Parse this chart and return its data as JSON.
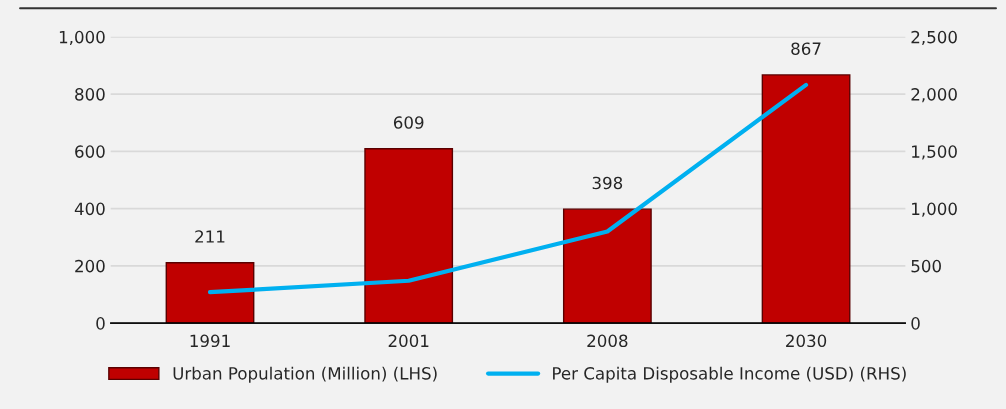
{
  "chart_data": {
    "type": "bar",
    "categories": [
      "1991",
      "2001",
      "2008",
      "2030"
    ],
    "series": [
      {
        "name": "Urban Population (Million) (LHS)",
        "color": "#c00000",
        "values": [
          211,
          609,
          398,
          867
        ],
        "value_labels": [
          "211",
          "609",
          "398",
          "867"
        ]
      },
      {
        "name": "Per Capita Disposable Income (USD) (RHS)",
        "type": "line",
        "axis": "y2",
        "color": "#00b0f0",
        "values": [
          270,
          370,
          800,
          2080
        ]
      }
    ],
    "ylim": [
      0,
      1000
    ],
    "yticks": [
      0,
      200,
      400,
      600,
      800,
      {
        "value": 1000,
        "label": "1,000"
      }
    ],
    "y2lim": [
      0,
      2500
    ],
    "y2ticks": [
      0,
      500,
      {
        "value": 1000,
        "label": "1,000"
      },
      {
        "value": 1500,
        "label": "1,500"
      },
      {
        "value": 2000,
        "label": "2,000"
      },
      {
        "value": 2500,
        "label": "2,500"
      }
    ],
    "grid": "y",
    "legend": "bottom",
    "marker": "none",
    "line_style": "solid"
  }
}
